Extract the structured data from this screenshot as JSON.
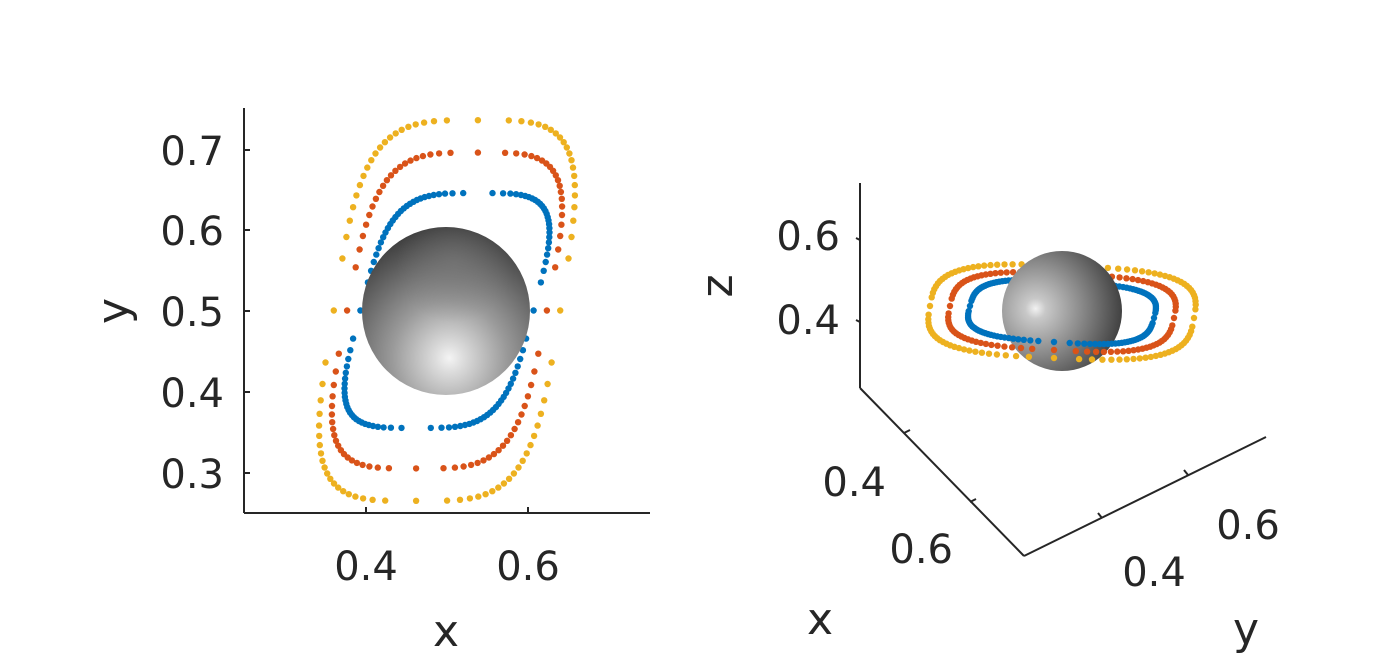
{
  "chart_data": [
    {
      "type": "scatter",
      "view": "2d top view",
      "xlabel": "x",
      "ylabel": "y",
      "xlim": [
        0.25,
        0.75
      ],
      "ylim": [
        0.25,
        0.75
      ],
      "xticks": [
        "0.4",
        "0.6"
      ],
      "yticks": [
        "0.3",
        "0.4",
        "0.5",
        "0.6",
        "0.7"
      ],
      "grid": false,
      "sphere": {
        "center": [
          0.5,
          0.5
        ],
        "radius": 0.1,
        "color": "gray shaded"
      },
      "series": [
        {
          "color": "#0072BD",
          "shape": "loop",
          "x_range": [
            0.37,
            0.63
          ],
          "y_range": [
            0.355,
            0.645
          ]
        },
        {
          "color": "#D95319",
          "shape": "loop",
          "x_range": [
            0.35,
            0.65
          ],
          "y_range": [
            0.305,
            0.695
          ]
        },
        {
          "color": "#EDB120",
          "shape": "loop",
          "x_range": [
            0.33,
            0.67
          ],
          "y_range": [
            0.265,
            0.735
          ]
        }
      ]
    },
    {
      "type": "scatter",
      "view": "3d perspective",
      "xlabel": "x",
      "ylabel": "y",
      "zlabel": "z",
      "xticks": [
        "0.4",
        "0.6"
      ],
      "yticks": [
        "0.4",
        "0.6"
      ],
      "zticks": [
        "0.4",
        "0.6"
      ],
      "grid": false,
      "sphere": {
        "color": "gray shaded"
      },
      "series": [
        {
          "color": "#0072BD",
          "shape": "loop"
        },
        {
          "color": "#D95319",
          "shape": "loop"
        },
        {
          "color": "#EDB120",
          "shape": "loop"
        }
      ]
    }
  ]
}
